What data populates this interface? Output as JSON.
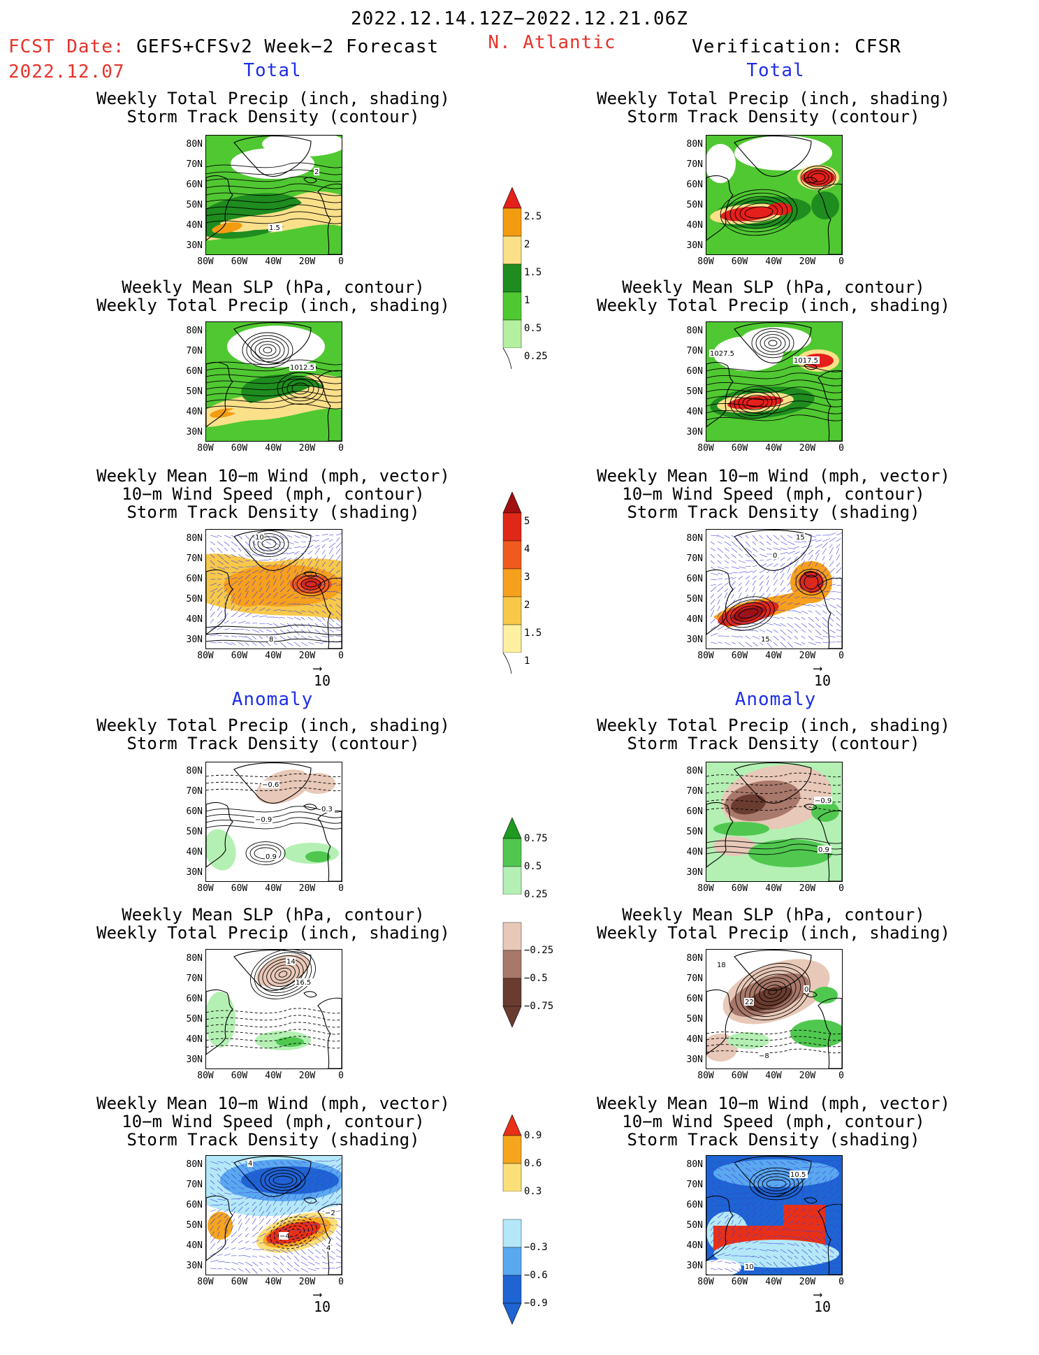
{
  "header": {
    "period": "2022.12.14.12Z−2022.12.21.06Z",
    "fcst_label": "FCST Date:",
    "fcst_model": "GEFS+CFSv2 Week−2 Forecast",
    "fcst_date": "2022.12.07",
    "region": "N. Atlantic",
    "verification": "Verification: CFSR"
  },
  "sections": {
    "total": "Total",
    "anomaly": "Anomaly"
  },
  "panel_titles": {
    "precip_track": [
      "Weekly Total Precip (inch, shading)",
      "Storm Track Density (contour)"
    ],
    "slp_precip": [
      "Weekly Mean SLP (hPa, contour)",
      "Weekly Total Precip (inch, shading)"
    ],
    "wind_track": [
      "Weekly Mean 10−m Wind (mph, vector)",
      "10−m Wind Speed (mph, contour)",
      "Storm Track Density (shading)"
    ]
  },
  "axes": {
    "lat": [
      "80N",
      "70N",
      "60N",
      "50N",
      "40N",
      "30N"
    ],
    "lon": [
      "80W",
      "60W",
      "40W",
      "20W",
      "0"
    ]
  },
  "vector_ref": "10",
  "contour_labels": {
    "f_precip_total": [
      "2",
      "1.5"
    ],
    "f_slp_total": [
      "1012.5"
    ],
    "v_slp_total": [
      "1027.5",
      "1017.5"
    ],
    "f_wind_total": [
      "10",
      "8"
    ],
    "v_wind_total": [
      "15",
      "0",
      "15"
    ],
    "f_precip_anom": [
      "−0.6",
      "0.3",
      "−0.9",
      "0.9"
    ],
    "v_precip_anom": [
      "−0.9",
      "0.9"
    ],
    "f_slp_anom": [
      "14",
      "16.5"
    ],
    "v_slp_anom": [
      "18",
      "22",
      "−8",
      "0"
    ],
    "f_wind_anom": [
      "4",
      "−2",
      "−4",
      "4"
    ],
    "v_wind_anom": [
      "10.5",
      "10"
    ]
  },
  "colorbars": {
    "precip_total": {
      "labels": [
        "2.5",
        "2",
        "1.5",
        "1",
        "0.5",
        "0.25"
      ],
      "colors": [
        "#e51f1b",
        "#f39c12",
        "#fbe08a",
        "#1e8c1e",
        "#50c832",
        "#b4f0a0"
      ]
    },
    "track_total": {
      "labels": [
        "5",
        "4",
        "3",
        "2",
        "1.5",
        "1"
      ],
      "colors": [
        "#a01010",
        "#e02818",
        "#f05a1e",
        "#f7a01e",
        "#f7c84a",
        "#fdf0a0"
      ]
    },
    "precip_anom": {
      "labels": [
        "0.75",
        "0.5",
        "0.25",
        "−0.25",
        "−0.5",
        "−0.75"
      ],
      "colors": [
        "#1e9b1e",
        "#50c850",
        "#b4f0b4",
        "#ffffff",
        "#e8c8b8",
        "#a8786a",
        "#6a3c30"
      ]
    },
    "track_anom": {
      "labels": [
        "0.9",
        "0.6",
        "0.3",
        "−0.3",
        "−0.6",
        "−0.9"
      ],
      "colors": [
        "#e83018",
        "#f6a61e",
        "#fbe07a",
        "#ffffff",
        "#b4e8f8",
        "#5aa8f0",
        "#1e64d2"
      ]
    }
  },
  "colors": {
    "accent_red": "#e8322a",
    "accent_blue": "#1e2ee6"
  }
}
